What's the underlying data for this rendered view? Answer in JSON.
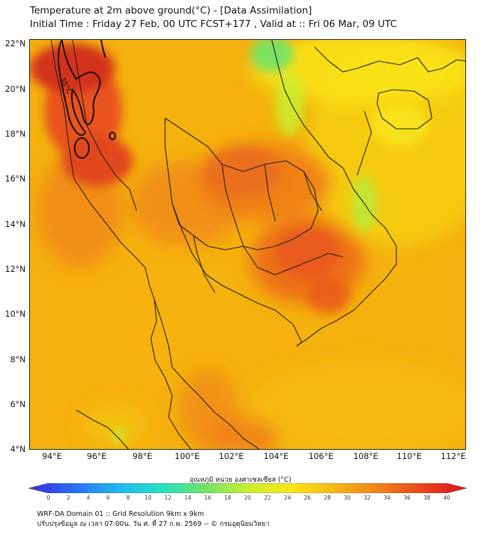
{
  "header": {
    "title_line1": "Temperature at 2m above ground(°C) - [Data Assimilation]",
    "title_line2": "Initial Time : Friday 27 Feb, 00 UTC FCST+177 , Valid at :: Fri 06 Mar, 09 UTC"
  },
  "map": {
    "latitude_labels": [
      "22°N",
      "20°N",
      "18°N",
      "16°N",
      "14°N",
      "12°N",
      "10°N",
      "8°N",
      "6°N",
      "4°N"
    ],
    "longitude_labels": [
      "94°E",
      "96°E",
      "98°E",
      "100°E",
      "102°E",
      "104°E",
      "106°E",
      "108°E",
      "110°E",
      "112°E"
    ],
    "contour_label": "35°C",
    "colors": {
      "base": "#f5b10e",
      "hot": "#e8531c",
      "very_hot": "#d3301a",
      "warm": "#f08b16",
      "cool": "#f7e41c",
      "coolest": "#6ee36a",
      "land_border": "#1e1e1e"
    }
  },
  "colorbar": {
    "title": "อุณหภูมิ หน่วย องศาเซลเซียส (°C)",
    "ticks": [
      "0",
      "2",
      "4",
      "6",
      "8",
      "10",
      "12",
      "14",
      "16",
      "18",
      "20",
      "22",
      "24",
      "26",
      "28",
      "30",
      "32",
      "34",
      "36",
      "38",
      "40"
    ],
    "stops": [
      "#3a2bd8",
      "#2a6cf2",
      "#1fb6f0",
      "#25e0c6",
      "#6ee36a",
      "#c9ef2f",
      "#f9e61b",
      "#f7b614",
      "#f08118",
      "#e8451d",
      "#e0121e"
    ]
  },
  "footer": {
    "line1": "WRF-DA Domain 01 :: Grid Resolution 9km x 9km",
    "line2": "ปรับปรุงข้อมูล ณ เวลา 07:00น. วัน ศ. ที่ 27 ก.พ. 2569 -- © กรมอุตุนิยมวิทยา"
  }
}
